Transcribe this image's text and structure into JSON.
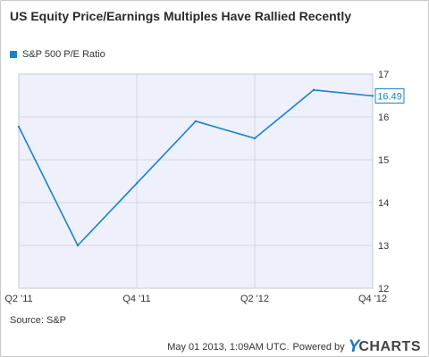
{
  "title": "US Equity Price/Earnings Multiples Have Rallied Recently",
  "source": "Source: S&P",
  "timestamp": "May 01 2013, 1:09AM UTC.",
  "powered_by": "Powered by",
  "brand": {
    "initial": "Y",
    "rest": "CHARTS"
  },
  "colors": {
    "series": "#1a80d0",
    "plot_bg": "#eef1fb",
    "grid": "#d2d6e0"
  },
  "chart_data": {
    "type": "line",
    "title": "US Equity Price/Earnings Multiples Have Rallied Recently",
    "series": [
      {
        "name": "S&P 500 P/E Ratio",
        "values": [
          15.77,
          13.0,
          14.45,
          15.9,
          15.5,
          16.63,
          16.49
        ]
      }
    ],
    "x": [
      0,
      1,
      2,
      3,
      4,
      5,
      6
    ],
    "x_tick_positions": [
      0,
      2,
      4,
      6
    ],
    "x_tick_labels": [
      "Q2  '11",
      "Q4  '11",
      "Q2  '12",
      "Q4  '12"
    ],
    "ylim": [
      12,
      17
    ],
    "y_ticks": [
      12,
      13,
      14,
      15,
      16,
      17
    ],
    "last_value_label": "16.49",
    "grid": true,
    "legend_position": "top-left"
  }
}
